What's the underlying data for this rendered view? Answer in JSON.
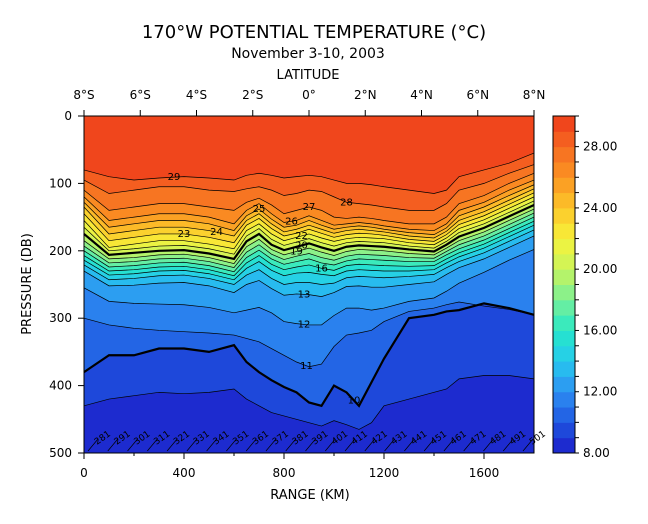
{
  "chart_data": {
    "type": "heatmap",
    "title": "170°W POTENTIAL TEMPERATURE (°C)",
    "subtitle": "November 3-10, 2003",
    "top_axis_label": "LATITUDE",
    "top_ticks": [
      "8°S",
      "6°S",
      "4°S",
      "2°S",
      "0°",
      "2°N",
      "4°N",
      "6°N",
      "8°N"
    ],
    "xlabel": "RANGE (KM)",
    "ylabel": "PRESSURE (DB)",
    "xlim": [
      0,
      1800
    ],
    "ylim": [
      500,
      0
    ],
    "x_ticks": [
      "0",
      "400",
      "800",
      "1200",
      "1600"
    ],
    "y_ticks": [
      "0",
      "100",
      "200",
      "300",
      "400",
      "500"
    ],
    "colorbar": {
      "range": [
        8,
        30
      ],
      "step": 1,
      "tick_labels": [
        "8.00",
        "12.00",
        "16.00",
        "20.00",
        "24.00",
        "28.00"
      ]
    },
    "isotherm_depths": {
      "x_km": [
        0,
        100,
        200,
        300,
        400,
        500,
        600,
        650,
        700,
        750,
        800,
        850,
        900,
        950,
        1000,
        1050,
        1100,
        1150,
        1200,
        1300,
        1400,
        1450,
        1500,
        1600,
        1700,
        1800
      ],
      "29": [
        80,
        90,
        95,
        92,
        90,
        92,
        95,
        88,
        85,
        88,
        92,
        90,
        88,
        90,
        95,
        100,
        100,
        102,
        105,
        110,
        115,
        110,
        90,
        80,
        70,
        55
      ],
      "28": [
        95,
        115,
        110,
        105,
        105,
        110,
        112,
        108,
        105,
        110,
        118,
        115,
        110,
        112,
        120,
        128,
        130,
        132,
        135,
        140,
        140,
        130,
        110,
        100,
        85,
        72
      ],
      "27": [
        110,
        140,
        135,
        130,
        130,
        135,
        140,
        128,
        122,
        132,
        145,
        140,
        135,
        140,
        150,
        152,
        150,
        152,
        155,
        160,
        160,
        150,
        130,
        118,
        100,
        85
      ],
      "26": [
        120,
        155,
        150,
        145,
        145,
        150,
        160,
        140,
        130,
        145,
        158,
        155,
        148,
        155,
        162,
        160,
        158,
        160,
        163,
        168,
        170,
        160,
        140,
        128,
        110,
        95
      ],
      "25": [
        128,
        165,
        160,
        155,
        155,
        160,
        170,
        148,
        138,
        153,
        165,
        162,
        155,
        162,
        168,
        165,
        163,
        165,
        168,
        173,
        176,
        166,
        148,
        135,
        118,
        102
      ],
      "24": [
        135,
        175,
        170,
        165,
        165,
        170,
        178,
        155,
        145,
        160,
        172,
        168,
        162,
        168,
        174,
        170,
        168,
        170,
        172,
        178,
        181,
        171,
        155,
        142,
        125,
        108
      ],
      "23": [
        145,
        185,
        180,
        175,
        175,
        180,
        188,
        162,
        152,
        167,
        178,
        174,
        168,
        174,
        180,
        176,
        174,
        175,
        177,
        183,
        186,
        176,
        161,
        148,
        131,
        114
      ],
      "22": [
        155,
        195,
        190,
        185,
        185,
        190,
        197,
        170,
        160,
        175,
        185,
        180,
        175,
        181,
        186,
        182,
        180,
        181,
        182,
        188,
        191,
        181,
        167,
        154,
        137,
        120
      ],
      "21": [
        165,
        200,
        197,
        193,
        192,
        197,
        205,
        178,
        167,
        183,
        192,
        187,
        182,
        188,
        193,
        188,
        186,
        187,
        188,
        193,
        196,
        186,
        173,
        160,
        143,
        126
      ],
      "20": [
        175,
        206,
        203,
        200,
        199,
        204,
        212,
        186,
        175,
        191,
        199,
        194,
        189,
        195,
        200,
        194,
        192,
        193,
        194,
        198,
        201,
        191,
        179,
        166,
        149,
        132
      ],
      "19": [
        185,
        212,
        210,
        206,
        205,
        210,
        219,
        194,
        183,
        198,
        206,
        201,
        196,
        202,
        207,
        201,
        198,
        199,
        200,
        204,
        206,
        196,
        185,
        172,
        155,
        138
      ],
      "18": [
        193,
        218,
        216,
        212,
        211,
        216,
        225,
        202,
        191,
        205,
        213,
        208,
        204,
        210,
        214,
        208,
        205,
        206,
        207,
        210,
        211,
        201,
        191,
        178,
        161,
        144
      ],
      "17": [
        200,
        224,
        222,
        218,
        217,
        222,
        231,
        210,
        199,
        212,
        220,
        216,
        212,
        218,
        221,
        215,
        212,
        213,
        214,
        216,
        216,
        206,
        197,
        184,
        167,
        150
      ],
      "16": [
        207,
        230,
        228,
        224,
        223,
        228,
        237,
        218,
        207,
        220,
        228,
        224,
        221,
        226,
        229,
        222,
        220,
        221,
        222,
        223,
        222,
        212,
        203,
        190,
        173,
        156
      ],
      "15": [
        214,
        236,
        234,
        230,
        229,
        234,
        243,
        226,
        216,
        229,
        237,
        233,
        232,
        235,
        237,
        230,
        228,
        229,
        230,
        230,
        228,
        218,
        209,
        196,
        179,
        162
      ],
      "14": [
        221,
        243,
        241,
        237,
        236,
        241,
        250,
        236,
        228,
        241,
        250,
        247,
        247,
        250,
        248,
        240,
        238,
        239,
        240,
        238,
        235,
        225,
        216,
        203,
        186,
        169
      ],
      "13": [
        230,
        252,
        251,
        248,
        247,
        252,
        262,
        250,
        244,
        256,
        266,
        264,
        265,
        268,
        262,
        253,
        252,
        254,
        254,
        250,
        246,
        235,
        225,
        212,
        195,
        178
      ],
      "12": [
        255,
        275,
        278,
        279,
        280,
        284,
        292,
        288,
        284,
        292,
        305,
        308,
        310,
        310,
        296,
        285,
        285,
        288,
        285,
        275,
        270,
        260,
        248,
        232,
        214,
        198
      ],
      "11": [
        300,
        310,
        315,
        318,
        320,
        322,
        325,
        330,
        335,
        345,
        355,
        365,
        372,
        368,
        342,
        325,
        322,
        318,
        305,
        290,
        285,
        280,
        276,
        282,
        287,
        295
      ],
      "10": [
        380,
        355,
        355,
        345,
        345,
        350,
        340,
        365,
        380,
        392,
        402,
        410,
        425,
        430,
        400,
        410,
        430,
        395,
        360,
        300,
        295,
        290,
        288,
        278,
        285,
        295
      ],
      "9": [
        430,
        420,
        415,
        410,
        412,
        410,
        405,
        420,
        430,
        440,
        445,
        450,
        455,
        460,
        452,
        458,
        465,
        455,
        430,
        420,
        410,
        405,
        390,
        385,
        385,
        390
      ]
    },
    "contour_labels": [
      "29",
      "28",
      "27",
      "26",
      "25",
      "24",
      "23",
      "22",
      "20",
      "19",
      "16",
      "13",
      "12",
      "11",
      "10"
    ],
    "stations": [
      "281",
      "291",
      "301",
      "311",
      "321",
      "331",
      "341",
      "351",
      "361",
      "371",
      "381",
      "391",
      "401",
      "411",
      "421",
      "431",
      "441",
      "451",
      "461",
      "471",
      "481",
      "491",
      "501"
    ]
  }
}
